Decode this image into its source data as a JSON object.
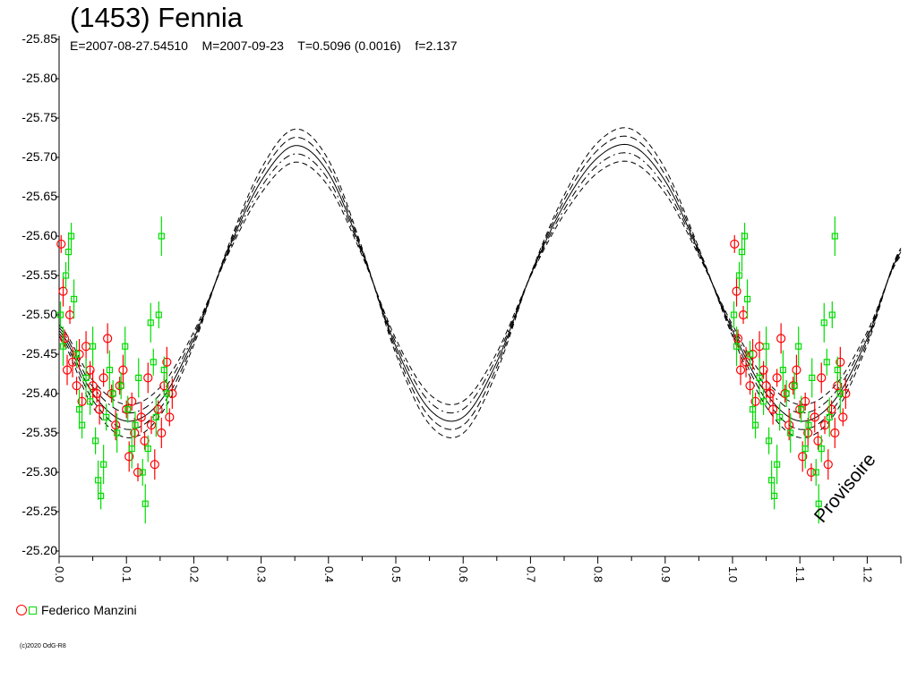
{
  "header": {
    "title": "(1453) Fennia",
    "subtitle": "E=2007-08-27.54510    M=2007-09-23    T=0.5096 (0.0016)    f=2.137"
  },
  "watermark": "Provisoire",
  "legend": {
    "label": "Federico Manzini"
  },
  "copyright": "(c)2020 OdG-R8",
  "chart_data": {
    "type": "scatter",
    "title": "(1453) Fennia",
    "subtitle": "E=2007-08-27.54510    M=2007-09-23    T=0.5096 (0.0016)    f=2.137",
    "xlabel": "",
    "ylabel": "",
    "xlim": [
      0,
      1.25
    ],
    "ylim": [
      -25.85,
      -25.2
    ],
    "y_inverted_labels": true,
    "x_ticks": [
      "0.0",
      "0.1",
      "0.2",
      "0.3",
      "0.4",
      "0.5",
      "0.6",
      "0.7",
      "0.8",
      "0.9",
      "1.0",
      "1.1",
      "1.2"
    ],
    "y_ticks": [
      "-25.85",
      "-25.80",
      "-25.75",
      "-25.70",
      "-25.65",
      "-25.60",
      "-25.55",
      "-25.50",
      "-25.45",
      "-25.40",
      "-25.35",
      "-25.30",
      "-25.25",
      "-25.20"
    ],
    "grid": false,
    "legend_placement": "bottom-left",
    "colors": {
      "series_red": "#ff0000",
      "series_green": "#00dd00",
      "model": "#000000"
    },
    "model_curve": {
      "description": "Fitted two-harmonic lightcurve with dashed uncertainty envelopes",
      "points": [
        [
          0.0,
          -25.48
        ],
        [
          0.05,
          -25.4
        ],
        [
          0.1,
          -25.365
        ],
        [
          0.15,
          -25.39
        ],
        [
          0.2,
          -25.47
        ],
        [
          0.25,
          -25.58
        ],
        [
          0.3,
          -25.67
        ],
        [
          0.35,
          -25.715
        ],
        [
          0.4,
          -25.68
        ],
        [
          0.45,
          -25.58
        ],
        [
          0.5,
          -25.46
        ],
        [
          0.55,
          -25.38
        ],
        [
          0.6,
          -25.37
        ],
        [
          0.65,
          -25.44
        ],
        [
          0.7,
          -25.55
        ],
        [
          0.75,
          -25.64
        ],
        [
          0.8,
          -25.7
        ],
        [
          0.85,
          -25.715
        ],
        [
          0.9,
          -25.67
        ],
        [
          0.95,
          -25.58
        ],
        [
          1.0,
          -25.48
        ],
        [
          1.05,
          -25.4
        ],
        [
          1.1,
          -25.365
        ],
        [
          1.15,
          -25.39
        ],
        [
          1.2,
          -25.47
        ],
        [
          1.25,
          -25.58
        ]
      ]
    },
    "series": [
      {
        "name": "Federico Manzini",
        "marker": "circle",
        "color": "#ff0000",
        "points": [
          [
            0.003,
            -25.59
          ],
          [
            0.006,
            -25.53
          ],
          [
            0.008,
            -25.47
          ],
          [
            0.012,
            -25.43
          ],
          [
            0.016,
            -25.5
          ],
          [
            0.02,
            -25.44
          ],
          [
            0.026,
            -25.41
          ],
          [
            0.03,
            -25.45
          ],
          [
            0.034,
            -25.39
          ],
          [
            0.04,
            -25.46
          ],
          [
            0.046,
            -25.43
          ],
          [
            0.05,
            -25.41
          ],
          [
            0.056,
            -25.4
          ],
          [
            0.06,
            -25.38
          ],
          [
            0.066,
            -25.42
          ],
          [
            0.072,
            -25.47
          ],
          [
            0.078,
            -25.4
          ],
          [
            0.084,
            -25.36
          ],
          [
            0.09,
            -25.41
          ],
          [
            0.095,
            -25.43
          ],
          [
            0.1,
            -25.38
          ],
          [
            0.104,
            -25.32
          ],
          [
            0.108,
            -25.39
          ],
          [
            0.112,
            -25.35
          ],
          [
            0.117,
            -25.3
          ],
          [
            0.122,
            -25.37
          ],
          [
            0.127,
            -25.34
          ],
          [
            0.132,
            -25.42
          ],
          [
            0.137,
            -25.36
          ],
          [
            0.142,
            -25.31
          ],
          [
            0.147,
            -25.38
          ],
          [
            0.152,
            -25.35
          ],
          [
            0.156,
            -25.41
          ],
          [
            0.16,
            -25.44
          ],
          [
            0.164,
            -25.37
          ],
          [
            0.168,
            -25.4
          ]
        ]
      },
      {
        "name": "Federico Manzini",
        "marker": "square",
        "color": "#00dd00",
        "points": [
          [
            0.002,
            -25.5
          ],
          [
            0.006,
            -25.46
          ],
          [
            0.01,
            -25.55
          ],
          [
            0.014,
            -25.58
          ],
          [
            0.018,
            -25.6
          ],
          [
            0.022,
            -25.52
          ],
          [
            0.026,
            -25.45
          ],
          [
            0.03,
            -25.38
          ],
          [
            0.034,
            -25.36
          ],
          [
            0.04,
            -25.42
          ],
          [
            0.046,
            -25.39
          ],
          [
            0.05,
            -25.46
          ],
          [
            0.054,
            -25.34
          ],
          [
            0.058,
            -25.29
          ],
          [
            0.062,
            -25.27
          ],
          [
            0.066,
            -25.31
          ],
          [
            0.07,
            -25.37
          ],
          [
            0.075,
            -25.43
          ],
          [
            0.08,
            -25.4
          ],
          [
            0.086,
            -25.35
          ],
          [
            0.092,
            -25.41
          ],
          [
            0.098,
            -25.46
          ],
          [
            0.102,
            -25.38
          ],
          [
            0.108,
            -25.33
          ],
          [
            0.113,
            -25.36
          ],
          [
            0.118,
            -25.42
          ],
          [
            0.124,
            -25.3
          ],
          [
            0.128,
            -25.26
          ],
          [
            0.132,
            -25.33
          ],
          [
            0.136,
            -25.49
          ],
          [
            0.14,
            -25.44
          ],
          [
            0.144,
            -25.37
          ],
          [
            0.148,
            -25.5
          ],
          [
            0.152,
            -25.6
          ],
          [
            0.156,
            -25.43
          ],
          [
            0.16,
            -25.4
          ]
        ]
      }
    ]
  }
}
